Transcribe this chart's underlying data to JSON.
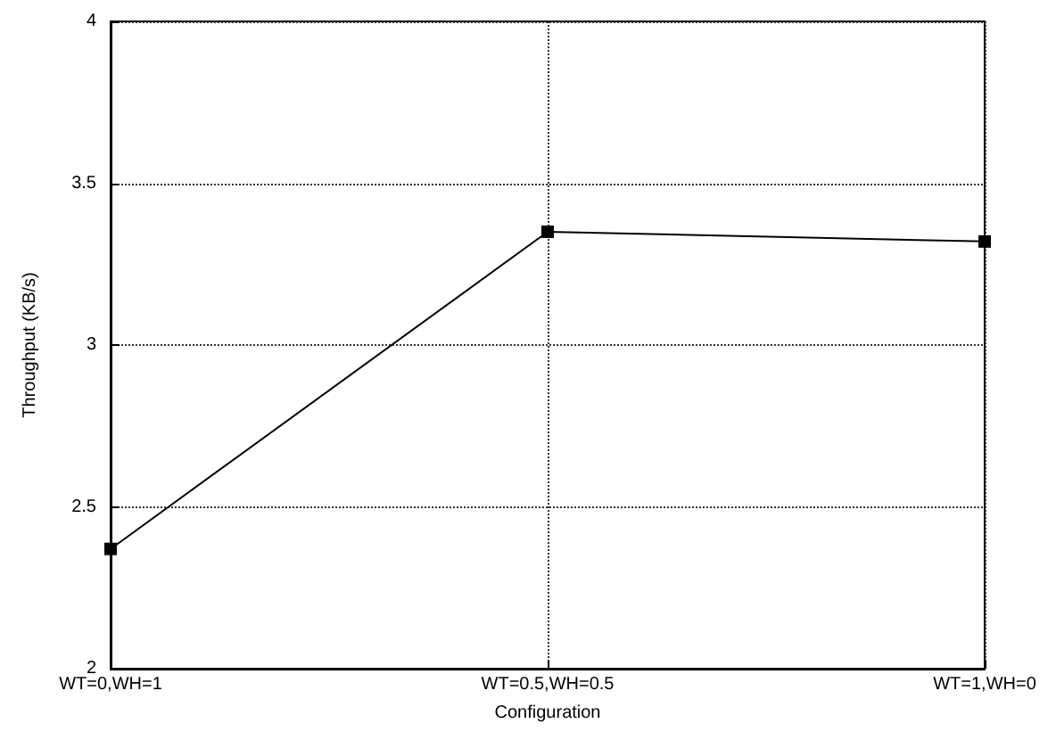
{
  "chart_data": {
    "type": "line",
    "xlabel": "Configuration",
    "ylabel": "Throughput (KB/s)",
    "categories": [
      "WT=0,WH=1",
      "WT=0.5,WH=0.5",
      "WT=1,WH=0"
    ],
    "series": [
      {
        "color": "#000000",
        "values": [
          2.37,
          3.35,
          3.32
        ]
      }
    ],
    "ylim": [
      2,
      4
    ],
    "yticks": [
      2,
      2.5,
      3,
      3.5,
      4
    ],
    "grid": true,
    "marker": "square",
    "line_style": "solid"
  }
}
